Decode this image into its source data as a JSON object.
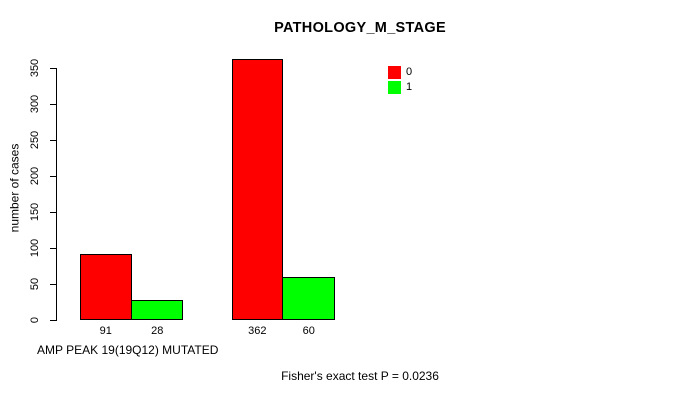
{
  "chart_data": {
    "type": "bar",
    "title": "PATHOLOGY_M_STAGE",
    "ylabel": "number of cases",
    "xlabel": "AMP PEAK 19(19Q12) MUTATED",
    "annotation": "Fisher's exact test P = 0.0236",
    "ylim": [
      0,
      350
    ],
    "yticks": [
      0,
      50,
      100,
      150,
      200,
      250,
      300,
      350
    ],
    "grid": false,
    "legend_position": "top-right-inside",
    "categories": [
      "",
      ""
    ],
    "series": [
      {
        "name": "0",
        "color": "#ff0000",
        "values": [
          91,
          362
        ]
      },
      {
        "name": "1",
        "color": "#00ff00",
        "values": [
          28,
          60
        ]
      }
    ],
    "bar_value_labels": [
      [
        "91",
        "362"
      ],
      [
        "28",
        "60"
      ]
    ],
    "background_color": "#ffffff",
    "axis_color": "#000000",
    "text_color": "#000000"
  }
}
